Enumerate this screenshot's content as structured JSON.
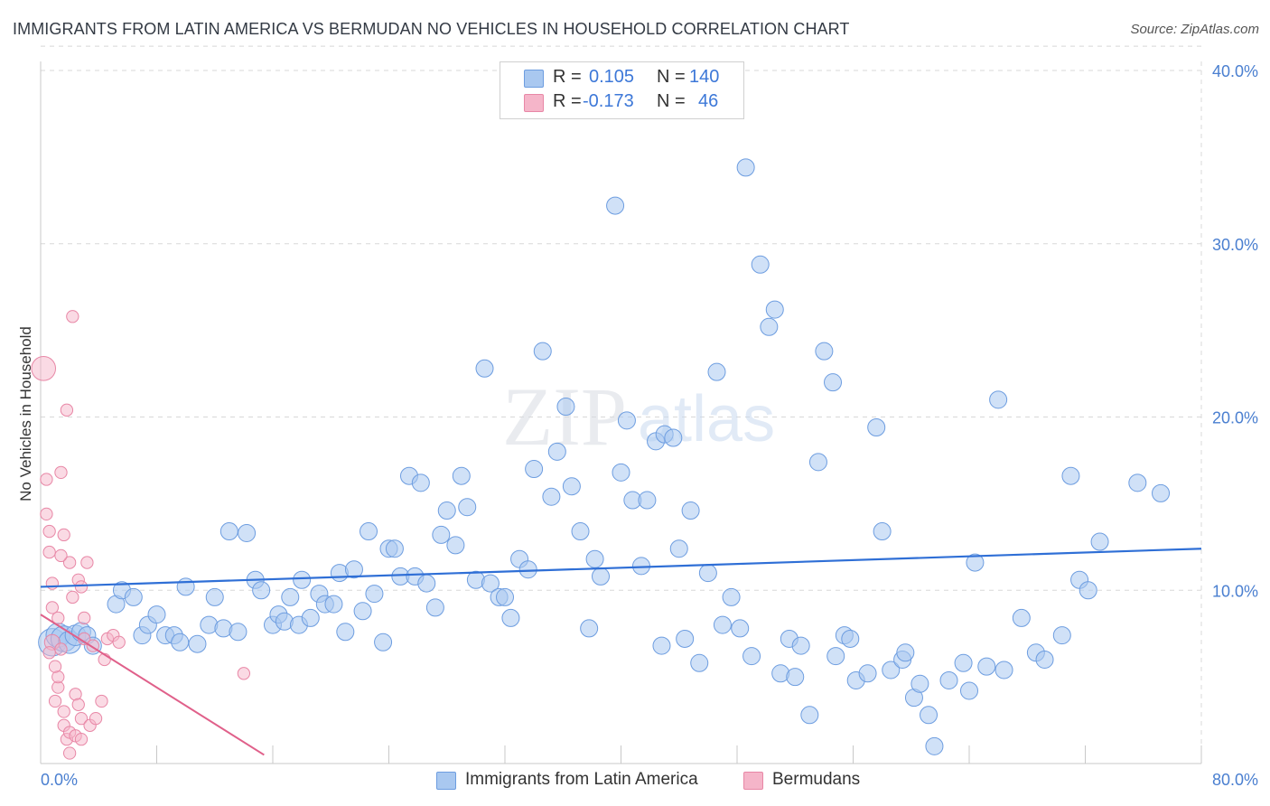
{
  "title": "IMMIGRANTS FROM LATIN AMERICA VS BERMUDAN NO VEHICLES IN HOUSEHOLD CORRELATION CHART",
  "source": "Source: ZipAtlas.com",
  "watermark": {
    "zip": "ZIP",
    "atlas": "atlas"
  },
  "legend_top": {
    "rows": [
      {
        "r_label": "R =",
        "r_value": "0.105",
        "n_label": "N =",
        "n_value": "140",
        "color": "#a9c8f0"
      },
      {
        "r_label": "R =",
        "r_value": "-0.173",
        "n_label": "N =",
        "n_value": "46",
        "color": "#f5b5c9"
      }
    ]
  },
  "legend_bottom": {
    "items": [
      {
        "label": "Immigrants from Latin America",
        "color": "#a9c8f0"
      },
      {
        "label": "Bermudans",
        "color": "#f5b5c9"
      }
    ]
  },
  "colors": {
    "blue_fill": "#a9c8f0",
    "blue_stroke": "#6d9de0",
    "blue_line": "#2f6fd6",
    "pink_fill": "#f5b5c9",
    "pink_stroke": "#e887a6",
    "pink_line": "#e0608a",
    "grid": "#d8d8d8",
    "tick_text": "#4a7fd0"
  },
  "chart_data": {
    "type": "scatter",
    "title": "IMMIGRANTS FROM LATIN AMERICA VS BERMUDAN NO VEHICLES IN HOUSEHOLD CORRELATION CHART",
    "xlabel": "",
    "ylabel": "No Vehicles in Household",
    "xlim": [
      0,
      80
    ],
    "ylim": [
      0,
      40
    ],
    "x_tick_labels": [
      "0.0%",
      "80.0%"
    ],
    "y_ticks": [
      10,
      20,
      30,
      40
    ],
    "y_tick_labels": [
      "10.0%",
      "20.0%",
      "30.0%",
      "40.0%"
    ],
    "grid": true,
    "legend_position": "top-center",
    "series": [
      {
        "name": "Immigrants from Latin America",
        "stats": {
          "R": 0.105,
          "N": 140
        },
        "trend": {
          "x": [
            0,
            80
          ],
          "y": [
            10.2,
            12.4
          ]
        },
        "points": [
          [
            0.8,
            7.0,
            1.6
          ],
          [
            1.2,
            7.4,
            1.4
          ],
          [
            1.6,
            7.2,
            1.5
          ],
          [
            2.0,
            7.0,
            1.3
          ],
          [
            2.4,
            7.4,
            1.2
          ],
          [
            2.8,
            7.6,
            1.1
          ],
          [
            3.2,
            7.4,
            1.0
          ],
          [
            3.6,
            6.8,
            1.0
          ],
          [
            5.2,
            9.2,
            1.0
          ],
          [
            5.6,
            10.0,
            1.0
          ],
          [
            6.4,
            9.6,
            1.0
          ],
          [
            7.0,
            7.4,
            1.0
          ],
          [
            7.4,
            8.0,
            1.0
          ],
          [
            8.0,
            8.6,
            1.0
          ],
          [
            8.6,
            7.4,
            1.0
          ],
          [
            9.2,
            7.4,
            1.0
          ],
          [
            9.6,
            7.0,
            1.0
          ],
          [
            10.0,
            10.2,
            1.0
          ],
          [
            10.8,
            6.9,
            1.0
          ],
          [
            11.6,
            8.0,
            1.0
          ],
          [
            12.0,
            9.6,
            1.0
          ],
          [
            12.6,
            7.8,
            1.0
          ],
          [
            13.0,
            13.4,
            1.0
          ],
          [
            13.6,
            7.6,
            1.0
          ],
          [
            14.2,
            13.3,
            1.0
          ],
          [
            14.8,
            10.6,
            1.0
          ],
          [
            15.2,
            10.0,
            1.0
          ],
          [
            16.0,
            8.0,
            1.0
          ],
          [
            16.4,
            8.6,
            1.0
          ],
          [
            16.8,
            8.2,
            1.0
          ],
          [
            17.2,
            9.6,
            1.0
          ],
          [
            17.8,
            8.0,
            1.0
          ],
          [
            18.0,
            10.6,
            1.0
          ],
          [
            18.6,
            8.4,
            1.0
          ],
          [
            19.2,
            9.8,
            1.0
          ],
          [
            19.6,
            9.2,
            1.0
          ],
          [
            20.2,
            9.2,
            1.0
          ],
          [
            20.6,
            11.0,
            1.0
          ],
          [
            21.0,
            7.6,
            1.0
          ],
          [
            21.6,
            11.2,
            1.0
          ],
          [
            22.2,
            8.8,
            1.0
          ],
          [
            22.6,
            13.4,
            1.0
          ],
          [
            23.0,
            9.8,
            1.0
          ],
          [
            23.6,
            7.0,
            1.0
          ],
          [
            24.0,
            12.4,
            1.0
          ],
          [
            24.4,
            12.4,
            1.0
          ],
          [
            24.8,
            10.8,
            1.0
          ],
          [
            25.4,
            16.6,
            1.0
          ],
          [
            25.8,
            10.8,
            1.0
          ],
          [
            26.2,
            16.2,
            1.0
          ],
          [
            26.6,
            10.4,
            1.0
          ],
          [
            27.2,
            9.0,
            1.0
          ],
          [
            27.6,
            13.2,
            1.0
          ],
          [
            28.0,
            14.6,
            1.0
          ],
          [
            28.6,
            12.6,
            1.0
          ],
          [
            29.0,
            16.6,
            1.0
          ],
          [
            29.4,
            14.8,
            1.0
          ],
          [
            30.0,
            10.6,
            1.0
          ],
          [
            30.6,
            22.8,
            1.0
          ],
          [
            31.0,
            10.4,
            1.0
          ],
          [
            31.6,
            9.6,
            1.0
          ],
          [
            32.0,
            9.6,
            1.0
          ],
          [
            32.4,
            8.4,
            1.0
          ],
          [
            33.0,
            11.8,
            1.0
          ],
          [
            33.6,
            11.2,
            1.0
          ],
          [
            34.0,
            17.0,
            1.0
          ],
          [
            34.6,
            23.8,
            1.0
          ],
          [
            35.2,
            15.4,
            1.0
          ],
          [
            35.6,
            18.0,
            1.0
          ],
          [
            36.2,
            20.6,
            1.0
          ],
          [
            36.6,
            16.0,
            1.0
          ],
          [
            37.2,
            13.4,
            1.0
          ],
          [
            37.8,
            7.8,
            1.0
          ],
          [
            38.2,
            11.8,
            1.0
          ],
          [
            38.6,
            10.8,
            1.0
          ],
          [
            39.6,
            32.2,
            1.0
          ],
          [
            40.0,
            16.8,
            1.0
          ],
          [
            40.4,
            19.8,
            1.0
          ],
          [
            40.8,
            15.2,
            1.0
          ],
          [
            41.4,
            11.4,
            1.0
          ],
          [
            41.8,
            15.2,
            1.0
          ],
          [
            42.4,
            18.6,
            1.0
          ],
          [
            42.8,
            6.8,
            1.0
          ],
          [
            43.0,
            19.0,
            1.0
          ],
          [
            43.6,
            18.8,
            1.0
          ],
          [
            44.0,
            12.4,
            1.0
          ],
          [
            44.4,
            7.2,
            1.0
          ],
          [
            44.8,
            14.6,
            1.0
          ],
          [
            45.4,
            5.8,
            1.0
          ],
          [
            46.0,
            11.0,
            1.0
          ],
          [
            46.6,
            22.6,
            1.0
          ],
          [
            47.0,
            8.0,
            1.0
          ],
          [
            47.6,
            9.6,
            1.0
          ],
          [
            48.2,
            7.8,
            1.0
          ],
          [
            48.6,
            34.4,
            1.0
          ],
          [
            49.0,
            6.2,
            1.0
          ],
          [
            49.6,
            28.8,
            1.0
          ],
          [
            50.2,
            25.2,
            1.0
          ],
          [
            50.6,
            26.2,
            1.0
          ],
          [
            51.0,
            5.2,
            1.0
          ],
          [
            51.6,
            7.2,
            1.0
          ],
          [
            52.0,
            5.0,
            1.0
          ],
          [
            52.4,
            6.8,
            1.0
          ],
          [
            53.0,
            2.8,
            1.0
          ],
          [
            53.6,
            17.4,
            1.0
          ],
          [
            54.0,
            23.8,
            1.0
          ],
          [
            54.6,
            22.0,
            1.0
          ],
          [
            54.8,
            6.2,
            1.0
          ],
          [
            55.4,
            7.4,
            1.0
          ],
          [
            55.8,
            7.2,
            1.0
          ],
          [
            56.2,
            4.8,
            1.0
          ],
          [
            57.0,
            5.2,
            1.0
          ],
          [
            57.6,
            19.4,
            1.0
          ],
          [
            58.0,
            13.4,
            1.0
          ],
          [
            58.6,
            5.4,
            1.0
          ],
          [
            59.4,
            6.0,
            1.0
          ],
          [
            59.6,
            6.4,
            1.0
          ],
          [
            60.2,
            3.8,
            1.0
          ],
          [
            60.6,
            4.6,
            1.0
          ],
          [
            61.2,
            2.8,
            1.0
          ],
          [
            61.6,
            1.0,
            1.0
          ],
          [
            62.6,
            4.8,
            1.0
          ],
          [
            63.6,
            5.8,
            1.0
          ],
          [
            64.0,
            4.2,
            1.0
          ],
          [
            64.4,
            11.6,
            1.0
          ],
          [
            65.2,
            5.6,
            1.0
          ],
          [
            66.0,
            21.0,
            1.0
          ],
          [
            66.4,
            5.4,
            1.0
          ],
          [
            67.6,
            8.4,
            1.0
          ],
          [
            68.6,
            6.4,
            1.0
          ],
          [
            69.2,
            6.0,
            1.0
          ],
          [
            70.4,
            7.4,
            1.0
          ],
          [
            71.0,
            16.6,
            1.0
          ],
          [
            71.6,
            10.6,
            1.0
          ],
          [
            72.2,
            10.0,
            1.0
          ],
          [
            73.0,
            12.8,
            1.0
          ],
          [
            75.6,
            16.2,
            1.0
          ],
          [
            77.2,
            15.6,
            1.0
          ]
        ]
      },
      {
        "name": "Bermudans",
        "stats": {
          "R": -0.173,
          "N": 46
        },
        "trend": {
          "x": [
            0,
            15.4
          ],
          "y": [
            8.6,
            0.5
          ]
        },
        "points": [
          [
            0.2,
            22.8,
            1.4
          ],
          [
            0.4,
            14.4,
            0.7
          ],
          [
            0.4,
            16.4,
            0.7
          ],
          [
            0.6,
            12.2,
            0.7
          ],
          [
            0.6,
            13.4,
            0.7
          ],
          [
            0.8,
            7.0,
            0.9
          ],
          [
            0.8,
            9.0,
            0.7
          ],
          [
            0.8,
            10.4,
            0.7
          ],
          [
            1.0,
            3.6,
            0.7
          ],
          [
            1.2,
            4.4,
            0.7
          ],
          [
            1.2,
            5.0,
            0.7
          ],
          [
            1.2,
            8.4,
            0.7
          ],
          [
            1.4,
            6.6,
            0.7
          ],
          [
            1.4,
            16.8,
            0.7
          ],
          [
            1.6,
            2.2,
            0.7
          ],
          [
            1.6,
            3.0,
            0.7
          ],
          [
            1.6,
            13.2,
            0.7
          ],
          [
            1.8,
            1.4,
            0.7
          ],
          [
            1.8,
            20.4,
            0.7
          ],
          [
            2.0,
            0.6,
            0.7
          ],
          [
            2.0,
            1.8,
            0.7
          ],
          [
            2.0,
            11.6,
            0.7
          ],
          [
            2.2,
            25.8,
            0.7
          ],
          [
            2.4,
            1.6,
            0.7
          ],
          [
            2.4,
            4.0,
            0.7
          ],
          [
            2.6,
            3.4,
            0.7
          ],
          [
            2.6,
            10.6,
            0.7
          ],
          [
            2.8,
            1.4,
            0.7
          ],
          [
            2.8,
            2.6,
            0.7
          ],
          [
            2.8,
            10.2,
            0.7
          ],
          [
            3.0,
            7.2,
            0.7
          ],
          [
            3.0,
            8.4,
            0.7
          ],
          [
            3.2,
            11.6,
            0.7
          ],
          [
            3.4,
            2.2,
            0.7
          ],
          [
            3.6,
            6.8,
            0.7
          ],
          [
            3.8,
            2.6,
            0.7
          ],
          [
            4.2,
            3.6,
            0.7
          ],
          [
            4.4,
            6.0,
            0.7
          ],
          [
            4.6,
            7.2,
            0.7
          ],
          [
            5.0,
            7.4,
            0.7
          ],
          [
            5.4,
            7.0,
            0.7
          ],
          [
            14.0,
            5.2,
            0.7
          ],
          [
            1.0,
            5.6,
            0.7
          ],
          [
            1.4,
            12.0,
            0.7
          ],
          [
            2.2,
            9.6,
            0.7
          ],
          [
            0.6,
            6.4,
            0.7
          ]
        ]
      }
    ]
  }
}
